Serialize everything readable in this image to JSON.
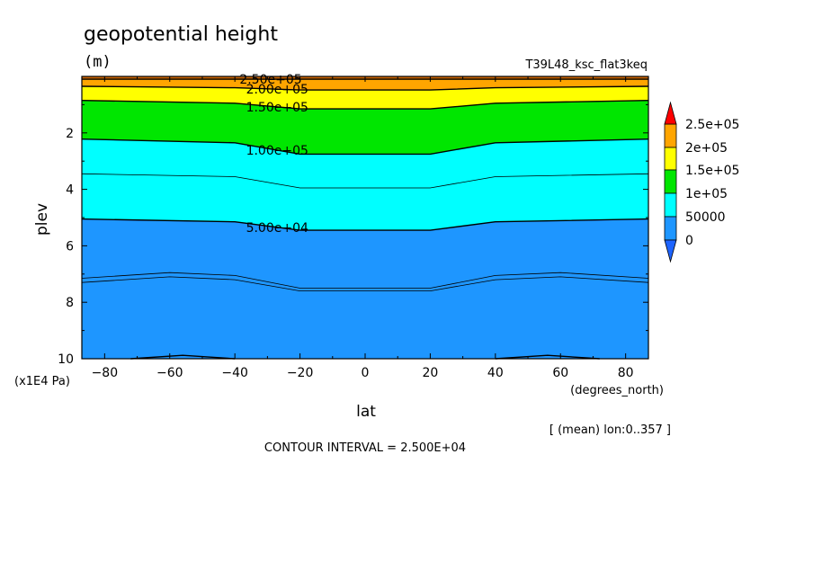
{
  "chart_data": {
    "type": "contour",
    "title": "geopotential height",
    "units": "(m)",
    "run_name": "T39L48_ksc_flat3keq",
    "xlabel": "lat",
    "xunits": "(degrees_north)",
    "ylabel": "plev",
    "yunits": "(x1E4 Pa)",
    "xlim": [
      -87,
      87
    ],
    "ylim": [
      0,
      10
    ],
    "y_inverted": true,
    "x_ticks": [
      -80,
      -60,
      -40,
      -20,
      0,
      20,
      40,
      60,
      80
    ],
    "y_ticks": [
      2,
      4,
      6,
      8,
      10
    ],
    "note": "[ (mean) lon:0..357 ]",
    "contour_interval_text": "CONTOUR INTERVAL = 2.500E+04",
    "contour_labels": [
      "2.50e+05",
      "2.00e+05",
      "1.50e+05",
      "1.00e+05",
      "5.00e+04"
    ],
    "levels": [
      0,
      50000,
      100000,
      150000,
      200000,
      250000
    ],
    "colorbar_labels": [
      "2.5e+05",
      "2e+05",
      "1.5e+05",
      "1e+05",
      "50000",
      "0"
    ],
    "colors": {
      "below_0": "#1e64ff",
      "0_50000": "#1e96ff",
      "50000_100000": "#00ffff",
      "100000_150000": "#00e600",
      "150000_200000": "#ffff00",
      "200000_250000": "#ffa500",
      "above_250000": "#ff0000"
    },
    "contours": [
      {
        "level": 250000,
        "points": [
          [
            -87,
            0.1
          ],
          [
            87,
            0.1
          ]
        ]
      },
      {
        "level": 200000,
        "points": [
          [
            -87,
            0.35
          ],
          [
            -40,
            0.4
          ],
          [
            -20,
            0.48
          ],
          [
            20,
            0.48
          ],
          [
            40,
            0.4
          ],
          [
            87,
            0.35
          ]
        ]
      },
      {
        "level": 150000,
        "points": [
          [
            -87,
            0.85
          ],
          [
            -40,
            0.95
          ],
          [
            -20,
            1.15
          ],
          [
            20,
            1.15
          ],
          [
            40,
            0.95
          ],
          [
            87,
            0.85
          ]
        ]
      },
      {
        "level": 100000,
        "points": [
          [
            -87,
            2.22
          ],
          [
            -40,
            2.35
          ],
          [
            -20,
            2.75
          ],
          [
            20,
            2.75
          ],
          [
            40,
            2.35
          ],
          [
            87,
            2.22
          ]
        ]
      },
      {
        "level": 75000,
        "points": [
          [
            -87,
            3.45
          ],
          [
            -40,
            3.55
          ],
          [
            -20,
            3.95
          ],
          [
            20,
            3.95
          ],
          [
            40,
            3.55
          ],
          [
            87,
            3.45
          ]
        ]
      },
      {
        "level": 50000,
        "points": [
          [
            -87,
            5.05
          ],
          [
            -40,
            5.15
          ],
          [
            -20,
            5.45
          ],
          [
            20,
            5.45
          ],
          [
            40,
            5.15
          ],
          [
            87,
            5.05
          ]
        ]
      },
      {
        "level": 25000,
        "points": [
          [
            -87,
            7.15
          ],
          [
            -60,
            6.95
          ],
          [
            -40,
            7.05
          ],
          [
            -20,
            7.5
          ],
          [
            20,
            7.5
          ],
          [
            40,
            7.05
          ],
          [
            60,
            6.95
          ],
          [
            87,
            7.15
          ]
        ]
      },
      {
        "level": 25000,
        "points": [
          [
            -87,
            7.3
          ],
          [
            -60,
            7.1
          ],
          [
            -40,
            7.2
          ],
          [
            -20,
            7.6
          ],
          [
            20,
            7.6
          ],
          [
            40,
            7.2
          ],
          [
            60,
            7.1
          ],
          [
            87,
            7.3
          ]
        ]
      },
      {
        "level": 0,
        "points": [
          [
            -72,
            10.0
          ],
          [
            -56,
            9.88
          ],
          [
            -40,
            10.0
          ]
        ]
      },
      {
        "level": 0,
        "points": [
          [
            40,
            10.0
          ],
          [
            56,
            9.88
          ],
          [
            72,
            10.0
          ]
        ]
      }
    ]
  }
}
